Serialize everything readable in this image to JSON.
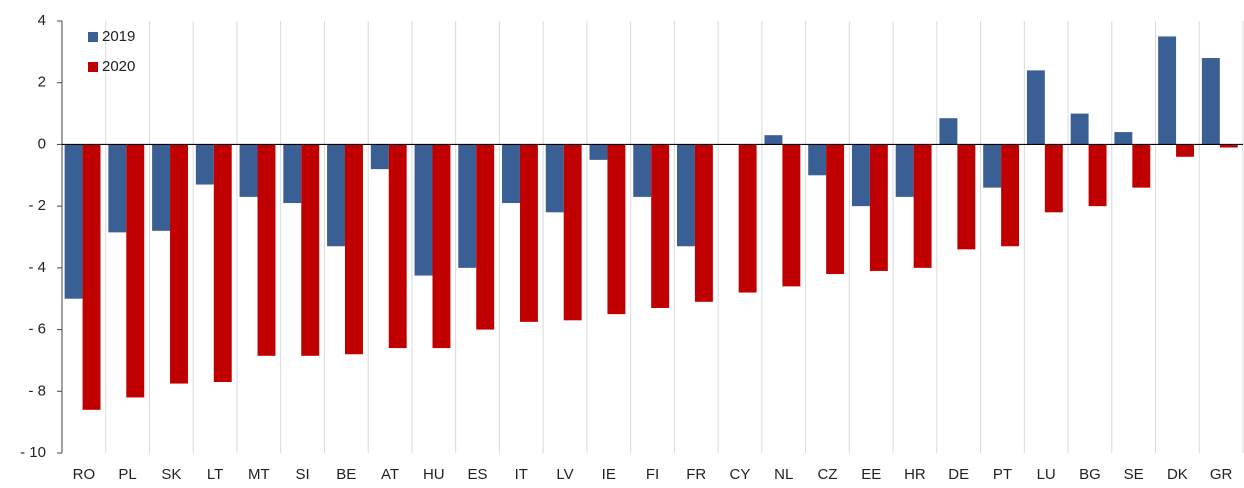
{
  "chart_data": {
    "type": "bar",
    "categories": [
      "RO",
      "PL",
      "SK",
      "LT",
      "MT",
      "SI",
      "BE",
      "AT",
      "HU",
      "ES",
      "IT",
      "LV",
      "IE",
      "FI",
      "FR",
      "CY",
      "NL",
      "CZ",
      "EE",
      "HR",
      "DE",
      "PT",
      "LU",
      "BG",
      "SE",
      "DK",
      "GR"
    ],
    "series": [
      {
        "name": "2019",
        "color": "#3a5f94",
        "values": [
          -5.0,
          -2.85,
          -2.8,
          -1.3,
          -1.7,
          -1.9,
          -3.3,
          -0.8,
          -4.25,
          -4.0,
          -1.9,
          -2.2,
          -0.5,
          -1.7,
          -3.3,
          null,
          0.3,
          -1.0,
          -2.0,
          -1.7,
          0.85,
          -1.4,
          2.4,
          1.0,
          0.4,
          3.5,
          2.8
        ]
      },
      {
        "name": "2020",
        "color": "#c00000",
        "values": [
          -8.6,
          -8.2,
          -7.75,
          -7.7,
          -6.85,
          -6.85,
          -6.8,
          -6.6,
          -6.6,
          -6.0,
          -5.75,
          -5.7,
          -5.5,
          -5.3,
          -5.1,
          -4.8,
          -4.6,
          -4.2,
          -4.1,
          -4.0,
          -3.4,
          -3.3,
          -2.2,
          -2.0,
          -1.4,
          -0.4,
          -0.1
        ]
      }
    ],
    "ylim": [
      -10,
      4
    ],
    "yticks": [
      {
        "value": -10,
        "label": "- 10"
      },
      {
        "value": -8,
        "label": "- 8"
      },
      {
        "value": -6,
        "label": "- 6"
      },
      {
        "value": -4,
        "label": "- 4"
      },
      {
        "value": -2,
        "label": "- 2"
      },
      0,
      2,
      4
    ],
    "legend": "upper left",
    "grid": "vertical"
  }
}
